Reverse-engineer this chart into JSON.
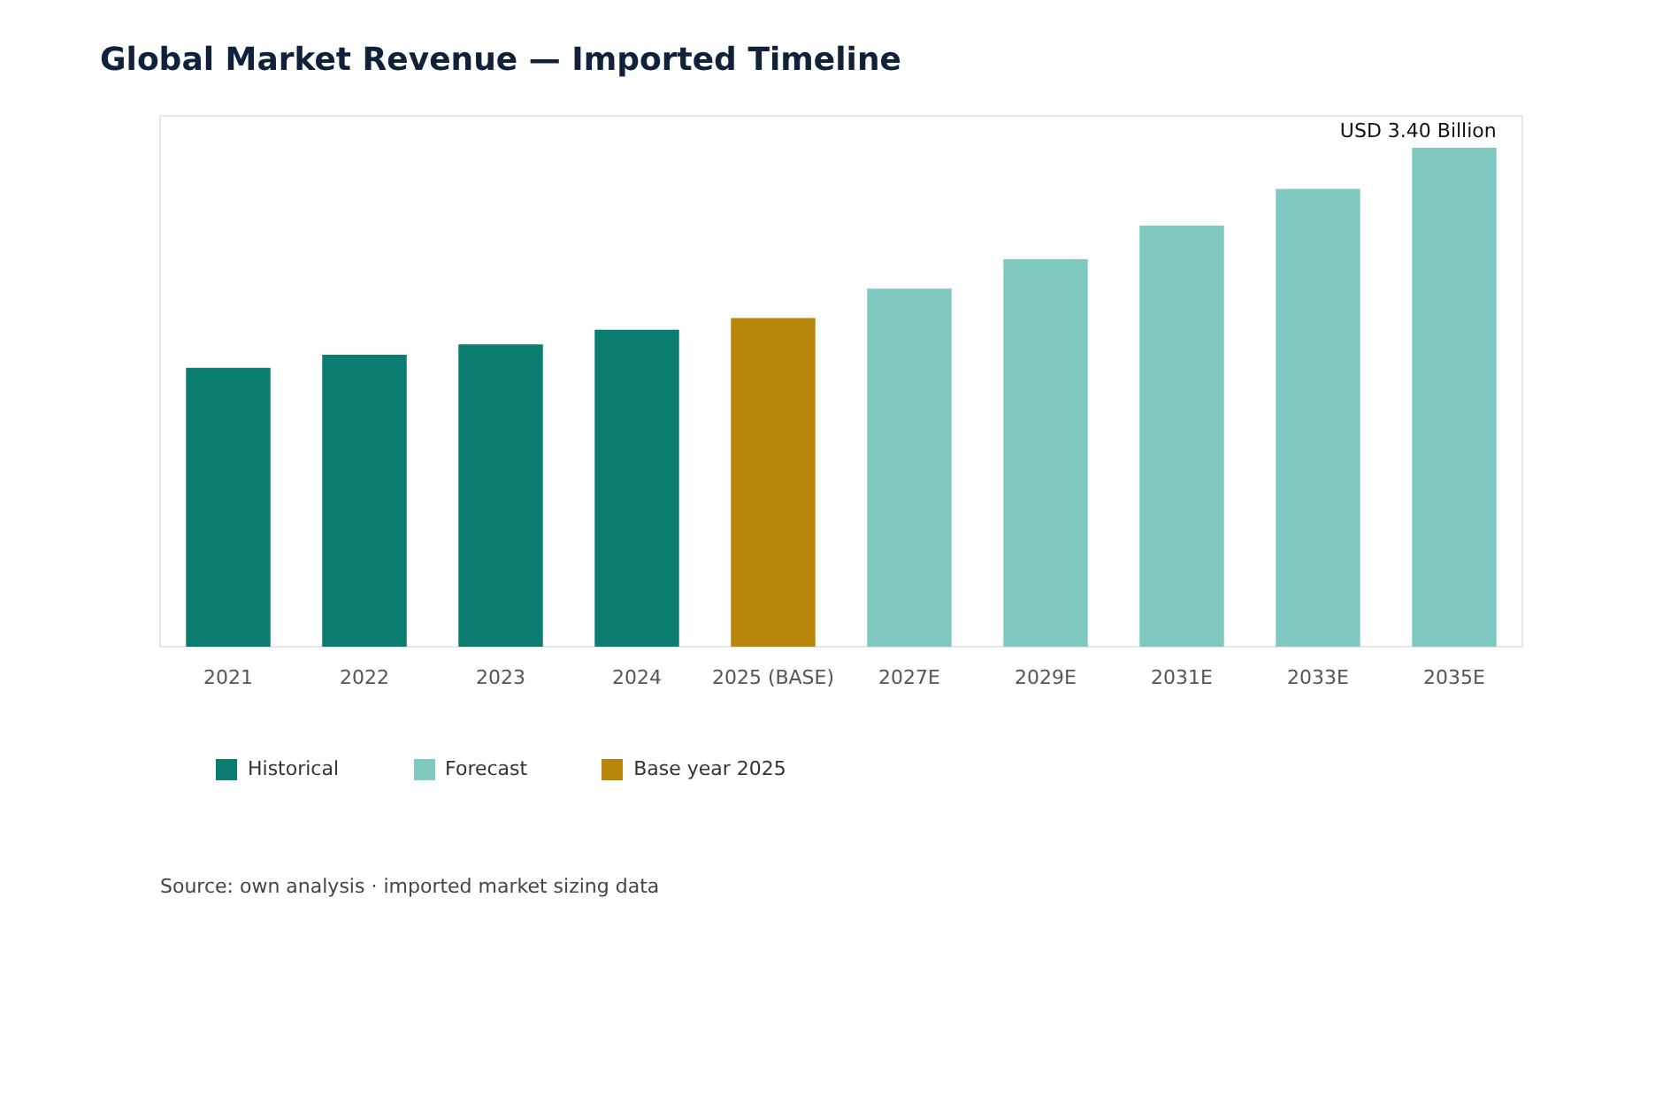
{
  "chart_data": {
    "type": "bar",
    "title": "Global Market Revenue — Imported Timeline",
    "categories": [
      "2021",
      "2022",
      "2023",
      "2024",
      "2025 (BASE)",
      "2027E",
      "2029E",
      "2031E",
      "2033E",
      "2035E"
    ],
    "series": [
      {
        "name": "Historical",
        "color": "#0a7c70",
        "values": [
          1.9,
          1.99,
          2.06,
          2.16,
          null,
          null,
          null,
          null,
          null,
          null
        ]
      },
      {
        "name": "Forecast",
        "color": "#7fc9c1",
        "values": [
          null,
          null,
          null,
          null,
          null,
          2.44,
          2.64,
          2.87,
          3.12,
          3.4
        ],
        "value_labels": [
          null,
          null,
          null,
          null,
          null,
          null,
          null,
          null,
          null,
          "USD 3.40 Billion"
        ]
      },
      {
        "name": "Base year 2025",
        "color": "#b8860b",
        "values": [
          null,
          null,
          null,
          null,
          2.24,
          null,
          null,
          null,
          null,
          null
        ]
      }
    ],
    "legend": "bottom",
    "annotations": [
      "Source: own analysis · imported market sizing data"
    ]
  }
}
